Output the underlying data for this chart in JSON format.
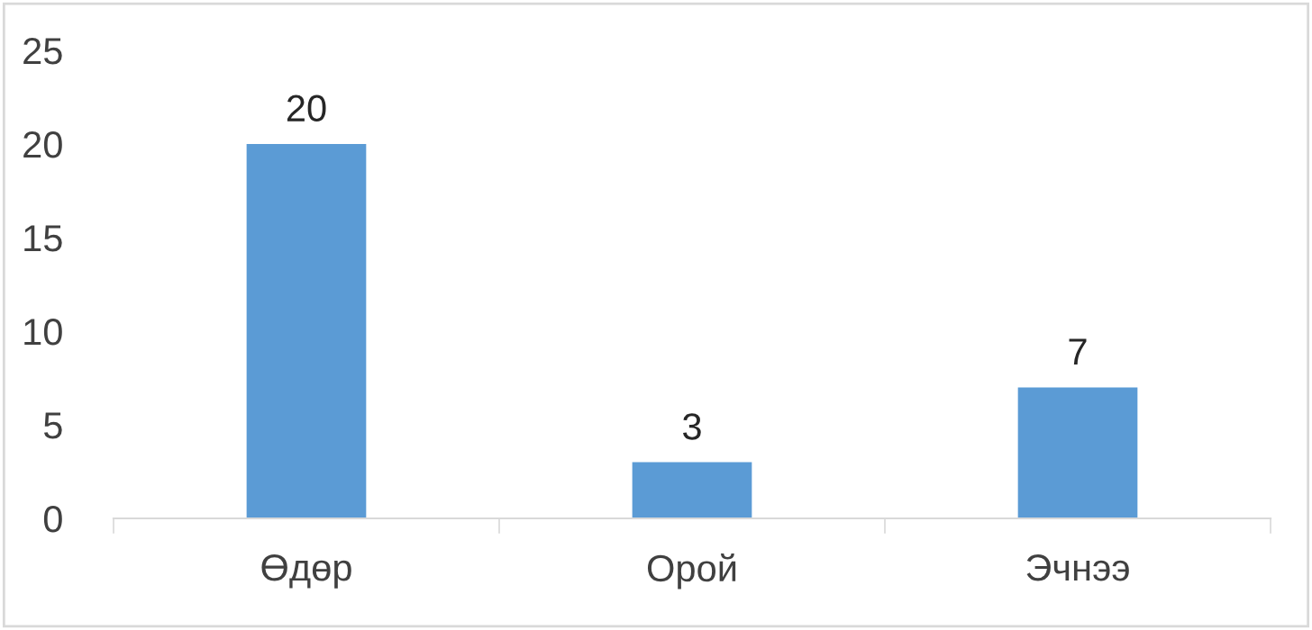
{
  "chart_data": {
    "type": "bar",
    "categories": [
      "Өдөр",
      "Орой",
      "Эчнээ"
    ],
    "values": [
      20,
      3,
      7
    ],
    "color": "#5b9bd5",
    "ylim": [
      0,
      25
    ],
    "yticks": [
      0,
      5,
      10,
      15,
      20,
      25
    ],
    "grid": false,
    "data_labels": true
  }
}
